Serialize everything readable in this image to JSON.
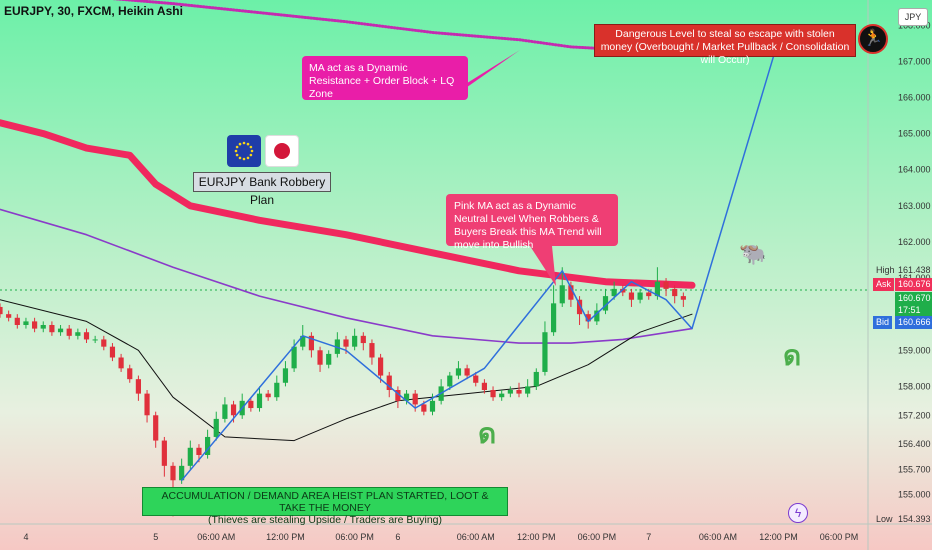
{
  "header": {
    "title": "EURJPY, 30, FXCM, Heikin Ashi"
  },
  "currency_button": "JPY",
  "annotations": {
    "ma_resistance": "MA act as a Dynamic Resistance + Order Block + LQ Zone",
    "pink_ma": "Pink MA act as a Dynamic Neutral Level When Robbers & Buyers Break this MA Trend will move into Bullish",
    "danger": "Dangerous Level to steal so escape with stolen money (Overbought / Market Pullback / Consolidation will Occur)",
    "accumulation": "ACCUMULATION / DEMAND AREA HEIST PLAN STARTED, LOOT & TAKE THE MONEY",
    "accumulation_sub": "(Thieves are stealing Upside / Traders are Buying)",
    "plan_label": "EURJPY Bank Robbery Plan"
  },
  "price_tags": {
    "high_label": "High",
    "high": "161.438",
    "ask_label": "Ask",
    "ask": "160.676",
    "last": "160.670",
    "countdown": "17:51",
    "bid_label": "Bid",
    "bid": "160.666",
    "low_label": "Low",
    "low": "154.393"
  },
  "colors": {
    "bull": "#1fae4a",
    "bear": "#e0303c",
    "pink_ma": "#f0285e",
    "purple_ma": "#8a3bc9",
    "black_ma": "#111111",
    "dotted_ma": "#c42bb0",
    "path": "#2f6fdc"
  },
  "icons": [
    "eu-flag-icon",
    "japan-flag-icon",
    "escape-runner-icon",
    "bull-icon",
    "swirl-icon",
    "lightning-icon"
  ],
  "chart_data": {
    "type": "candlestick",
    "title": "EURJPY, 30, FXCM, Heikin Ashi",
    "ylim": [
      154.3,
      168.7
    ],
    "y_ticks": [
      155.0,
      155.7,
      156.4,
      157.2,
      158.0,
      159.0,
      160.0,
      161.0,
      162.0,
      163.0,
      164.0,
      165.0,
      166.0,
      167.0,
      168.0
    ],
    "x_ticks": [
      "4",
      "5",
      "06:00 AM",
      "12:00 PM",
      "06:00 PM",
      "6",
      "06:00 AM",
      "12:00 PM",
      "06:00 PM",
      "7",
      "06:00 AM",
      "12:00 PM",
      "06:00 PM"
    ],
    "x_range": [
      0,
      100
    ],
    "candles": [
      [
        0,
        160.2,
        160.0,
        160.3,
        159.9
      ],
      [
        1,
        160.0,
        159.9,
        160.1,
        159.8
      ],
      [
        2,
        159.9,
        159.7,
        160.0,
        159.6
      ],
      [
        3,
        159.7,
        159.8,
        159.9,
        159.6
      ],
      [
        4,
        159.8,
        159.6,
        159.9,
        159.5
      ],
      [
        5,
        159.6,
        159.7,
        159.8,
        159.5
      ],
      [
        6,
        159.7,
        159.5,
        159.8,
        159.4
      ],
      [
        7,
        159.5,
        159.6,
        159.7,
        159.4
      ],
      [
        8,
        159.6,
        159.4,
        159.7,
        159.3
      ],
      [
        9,
        159.4,
        159.5,
        159.6,
        159.3
      ],
      [
        10,
        159.5,
        159.3,
        159.6,
        159.2
      ],
      [
        11,
        159.3,
        159.3,
        159.4,
        159.2
      ],
      [
        12,
        159.3,
        159.1,
        159.4,
        159.0
      ],
      [
        13,
        159.1,
        158.8,
        159.2,
        158.7
      ],
      [
        14,
        158.8,
        158.5,
        158.9,
        158.4
      ],
      [
        15,
        158.5,
        158.2,
        158.6,
        158.1
      ],
      [
        16,
        158.2,
        157.8,
        158.3,
        157.6
      ],
      [
        17,
        157.8,
        157.2,
        157.9,
        157.0
      ],
      [
        18,
        157.2,
        156.5,
        157.3,
        156.3
      ],
      [
        19,
        156.5,
        155.8,
        156.6,
        155.5
      ],
      [
        20,
        155.8,
        155.4,
        155.9,
        154.4
      ],
      [
        21,
        155.4,
        155.8,
        156.0,
        155.3
      ],
      [
        22,
        155.8,
        156.3,
        156.5,
        155.7
      ],
      [
        23,
        156.3,
        156.1,
        156.4,
        155.9
      ],
      [
        24,
        156.1,
        156.6,
        156.8,
        156.0
      ],
      [
        25,
        156.6,
        157.1,
        157.3,
        156.5
      ],
      [
        26,
        157.1,
        157.5,
        157.7,
        157.0
      ],
      [
        27,
        157.5,
        157.2,
        157.6,
        157.0
      ],
      [
        28,
        157.2,
        157.6,
        157.8,
        157.1
      ],
      [
        29,
        157.6,
        157.4,
        157.7,
        157.3
      ],
      [
        30,
        157.4,
        157.8,
        158.0,
        157.3
      ],
      [
        31,
        157.8,
        157.7,
        157.9,
        157.6
      ],
      [
        32,
        157.7,
        158.1,
        158.3,
        157.6
      ],
      [
        33,
        158.1,
        158.5,
        158.7,
        158.0
      ],
      [
        34,
        158.5,
        159.1,
        159.3,
        158.4
      ],
      [
        35,
        159.1,
        159.4,
        159.7,
        159.0
      ],
      [
        36,
        159.4,
        159.0,
        159.5,
        158.8
      ],
      [
        37,
        159.0,
        158.6,
        159.1,
        158.4
      ],
      [
        38,
        158.6,
        158.9,
        159.0,
        158.5
      ],
      [
        39,
        158.9,
        159.3,
        159.5,
        158.8
      ],
      [
        40,
        159.3,
        159.1,
        159.4,
        158.9
      ],
      [
        41,
        159.1,
        159.4,
        159.6,
        159.0
      ],
      [
        42,
        159.4,
        159.2,
        159.5,
        159.0
      ],
      [
        43,
        159.2,
        158.8,
        159.3,
        158.6
      ],
      [
        44,
        158.8,
        158.3,
        158.9,
        158.1
      ],
      [
        45,
        158.3,
        157.9,
        158.4,
        157.7
      ],
      [
        46,
        157.9,
        157.6,
        158.0,
        157.4
      ],
      [
        47,
        157.6,
        157.8,
        157.9,
        157.5
      ],
      [
        48,
        157.8,
        157.5,
        157.9,
        157.3
      ],
      [
        49,
        157.5,
        157.3,
        157.6,
        157.2
      ],
      [
        50,
        157.3,
        157.6,
        157.8,
        157.2
      ],
      [
        51,
        157.6,
        158.0,
        158.2,
        157.5
      ],
      [
        52,
        158.0,
        158.3,
        158.4,
        157.9
      ],
      [
        53,
        158.3,
        158.5,
        158.7,
        158.2
      ],
      [
        54,
        158.5,
        158.3,
        158.6,
        158.2
      ],
      [
        55,
        158.3,
        158.1,
        158.4,
        158.0
      ],
      [
        56,
        158.1,
        157.9,
        158.2,
        157.8
      ],
      [
        57,
        157.9,
        157.7,
        158.0,
        157.6
      ],
      [
        58,
        157.7,
        157.8,
        157.9,
        157.6
      ],
      [
        59,
        157.8,
        157.9,
        158.0,
        157.7
      ],
      [
        60,
        157.9,
        157.8,
        158.1,
        157.7
      ],
      [
        61,
        157.8,
        158.0,
        158.2,
        157.7
      ],
      [
        62,
        158.0,
        158.4,
        158.5,
        157.9
      ],
      [
        63,
        158.4,
        159.5,
        159.8,
        158.3
      ],
      [
        64,
        159.5,
        160.3,
        160.8,
        159.4
      ],
      [
        65,
        160.3,
        160.8,
        161.3,
        160.2
      ],
      [
        66,
        160.8,
        160.4,
        160.9,
        160.2
      ],
      [
        67,
        160.4,
        160.0,
        160.5,
        159.7
      ],
      [
        68,
        160.0,
        159.8,
        160.1,
        159.6
      ],
      [
        69,
        159.8,
        160.1,
        160.3,
        159.7
      ],
      [
        70,
        160.1,
        160.5,
        160.7,
        160.0
      ],
      [
        71,
        160.5,
        160.7,
        160.9,
        160.4
      ],
      [
        72,
        160.7,
        160.6,
        160.8,
        160.5
      ],
      [
        73,
        160.6,
        160.4,
        160.7,
        160.2
      ],
      [
        74,
        160.4,
        160.6,
        160.7,
        160.3
      ],
      [
        75,
        160.6,
        160.5,
        160.7,
        160.4
      ],
      [
        76,
        160.5,
        160.9,
        161.3,
        160.4
      ],
      [
        77,
        160.9,
        160.7,
        161.0,
        160.5
      ],
      [
        78,
        160.7,
        160.5,
        160.8,
        160.3
      ],
      [
        79,
        160.5,
        160.4,
        160.6,
        160.2
      ]
    ],
    "series": [
      {
        "name": "",
        "values": [
          [
            0,
            165.3
          ],
          [
            5,
            165.0
          ],
          [
            10,
            164.6
          ],
          [
            15,
            164.4
          ],
          [
            18,
            163.6
          ],
          [
            22,
            163.0
          ],
          [
            30,
            162.6
          ],
          [
            40,
            162.2
          ],
          [
            50,
            161.7
          ],
          [
            60,
            161.2
          ],
          [
            70,
            160.9
          ],
          [
            80,
            160.8
          ]
        ]
      },
      {
        "name": "",
        "values": [
          [
            0,
            162.9
          ],
          [
            10,
            162.2
          ],
          [
            20,
            161.3
          ],
          [
            30,
            160.5
          ],
          [
            40,
            159.9
          ],
          [
            50,
            159.4
          ],
          [
            60,
            159.2
          ],
          [
            66,
            159.2
          ],
          [
            72,
            159.3
          ],
          [
            80,
            159.6
          ]
        ]
      },
      {
        "name": "",
        "values": [
          [
            0,
            160.4
          ],
          [
            10,
            159.8
          ],
          [
            16,
            159.0
          ],
          [
            20,
            157.7
          ],
          [
            26,
            156.6
          ],
          [
            34,
            156.5
          ],
          [
            40,
            157.1
          ],
          [
            46,
            157.6
          ],
          [
            54,
            157.8
          ],
          [
            62,
            158.0
          ],
          [
            68,
            158.6
          ],
          [
            74,
            159.5
          ],
          [
            80,
            160.0
          ]
        ]
      },
      {
        "name": "",
        "values": [
          [
            0,
            169.0
          ],
          [
            20,
            168.6
          ],
          [
            40,
            168.1
          ],
          [
            50,
            167.8
          ],
          [
            60,
            167.6
          ],
          [
            66,
            167.4
          ],
          [
            74,
            167.3
          ],
          [
            80,
            167.2
          ]
        ]
      },
      {
        "name": "",
        "values": [
          [
            21,
            155.4
          ],
          [
            35,
            159.4
          ],
          [
            40,
            159.0
          ],
          [
            48,
            157.4
          ],
          [
            56,
            158.5
          ],
          [
            65,
            161.2
          ],
          [
            68,
            159.8
          ],
          [
            73,
            160.9
          ],
          [
            77,
            160.4
          ],
          [
            80,
            159.6
          ],
          [
            90,
            167.6
          ]
        ]
      }
    ]
  }
}
